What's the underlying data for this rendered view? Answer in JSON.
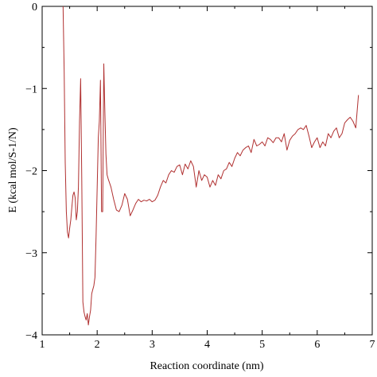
{
  "chart_data": {
    "type": "line",
    "xlabel": "Reaction coordinate (nm)",
    "ylabel": "E (kcal mol/S-1/N)",
    "xlim": [
      1,
      7
    ],
    "ylim": [
      -4,
      0
    ],
    "xticks": [
      1,
      2,
      3,
      4,
      5,
      6,
      7
    ],
    "yticks": [
      0,
      -1,
      -2,
      -3,
      -4
    ],
    "grid": false,
    "line_color": "#b03030",
    "series": [
      {
        "points": [
          [
            1.38,
            0.0
          ],
          [
            1.4,
            -0.8
          ],
          [
            1.42,
            -1.9
          ],
          [
            1.44,
            -2.5
          ],
          [
            1.46,
            -2.75
          ],
          [
            1.48,
            -2.82
          ],
          [
            1.5,
            -2.7
          ],
          [
            1.52,
            -2.6
          ],
          [
            1.54,
            -2.45
          ],
          [
            1.56,
            -2.3
          ],
          [
            1.58,
            -2.26
          ],
          [
            1.6,
            -2.33
          ],
          [
            1.62,
            -2.6
          ],
          [
            1.64,
            -2.5
          ],
          [
            1.66,
            -2.2
          ],
          [
            1.68,
            -1.4
          ],
          [
            1.7,
            -0.88
          ],
          [
            1.72,
            -2.1
          ],
          [
            1.74,
            -3.6
          ],
          [
            1.76,
            -3.72
          ],
          [
            1.78,
            -3.78
          ],
          [
            1.8,
            -3.82
          ],
          [
            1.82,
            -3.74
          ],
          [
            1.84,
            -3.88
          ],
          [
            1.86,
            -3.78
          ],
          [
            1.88,
            -3.7
          ],
          [
            1.9,
            -3.5
          ],
          [
            1.92,
            -3.45
          ],
          [
            1.94,
            -3.4
          ],
          [
            1.96,
            -3.3
          ],
          [
            1.98,
            -2.8
          ],
          [
            2.0,
            -2.2
          ],
          [
            2.02,
            -1.6
          ],
          [
            2.04,
            -1.4
          ],
          [
            2.06,
            -0.9
          ],
          [
            2.08,
            -2.5
          ],
          [
            2.1,
            -2.5
          ],
          [
            2.12,
            -0.7
          ],
          [
            2.14,
            -1.3
          ],
          [
            2.16,
            -1.8
          ],
          [
            2.18,
            -2.05
          ],
          [
            2.2,
            -2.1
          ],
          [
            2.25,
            -2.2
          ],
          [
            2.3,
            -2.35
          ],
          [
            2.35,
            -2.48
          ],
          [
            2.4,
            -2.5
          ],
          [
            2.45,
            -2.42
          ],
          [
            2.5,
            -2.28
          ],
          [
            2.55,
            -2.35
          ],
          [
            2.6,
            -2.55
          ],
          [
            2.65,
            -2.48
          ],
          [
            2.7,
            -2.4
          ],
          [
            2.75,
            -2.35
          ],
          [
            2.8,
            -2.38
          ],
          [
            2.85,
            -2.36
          ],
          [
            2.9,
            -2.37
          ],
          [
            2.95,
            -2.35
          ],
          [
            3.0,
            -2.38
          ],
          [
            3.05,
            -2.36
          ],
          [
            3.1,
            -2.3
          ],
          [
            3.15,
            -2.2
          ],
          [
            3.2,
            -2.12
          ],
          [
            3.25,
            -2.15
          ],
          [
            3.3,
            -2.05
          ],
          [
            3.35,
            -2.0
          ],
          [
            3.4,
            -2.02
          ],
          [
            3.45,
            -1.95
          ],
          [
            3.5,
            -1.93
          ],
          [
            3.55,
            -2.05
          ],
          [
            3.6,
            -1.92
          ],
          [
            3.65,
            -1.98
          ],
          [
            3.7,
            -1.88
          ],
          [
            3.75,
            -1.95
          ],
          [
            3.8,
            -2.2
          ],
          [
            3.85,
            -2.0
          ],
          [
            3.9,
            -2.12
          ],
          [
            3.95,
            -2.05
          ],
          [
            4.0,
            -2.08
          ],
          [
            4.05,
            -2.2
          ],
          [
            4.1,
            -2.12
          ],
          [
            4.15,
            -2.18
          ],
          [
            4.2,
            -2.05
          ],
          [
            4.25,
            -2.1
          ],
          [
            4.3,
            -2.0
          ],
          [
            4.35,
            -1.98
          ],
          [
            4.4,
            -1.9
          ],
          [
            4.45,
            -1.95
          ],
          [
            4.5,
            -1.85
          ],
          [
            4.55,
            -1.78
          ],
          [
            4.6,
            -1.82
          ],
          [
            4.65,
            -1.75
          ],
          [
            4.7,
            -1.72
          ],
          [
            4.75,
            -1.7
          ],
          [
            4.8,
            -1.78
          ],
          [
            4.85,
            -1.62
          ],
          [
            4.9,
            -1.7
          ],
          [
            4.95,
            -1.68
          ],
          [
            5.0,
            -1.65
          ],
          [
            5.05,
            -1.7
          ],
          [
            5.1,
            -1.6
          ],
          [
            5.15,
            -1.62
          ],
          [
            5.2,
            -1.66
          ],
          [
            5.25,
            -1.6
          ],
          [
            5.3,
            -1.6
          ],
          [
            5.35,
            -1.65
          ],
          [
            5.4,
            -1.55
          ],
          [
            5.45,
            -1.75
          ],
          [
            5.5,
            -1.63
          ],
          [
            5.55,
            -1.58
          ],
          [
            5.6,
            -1.55
          ],
          [
            5.65,
            -1.5
          ],
          [
            5.7,
            -1.48
          ],
          [
            5.75,
            -1.5
          ],
          [
            5.8,
            -1.45
          ],
          [
            5.85,
            -1.58
          ],
          [
            5.9,
            -1.72
          ],
          [
            5.95,
            -1.65
          ],
          [
            6.0,
            -1.6
          ],
          [
            6.05,
            -1.72
          ],
          [
            6.1,
            -1.65
          ],
          [
            6.15,
            -1.7
          ],
          [
            6.2,
            -1.55
          ],
          [
            6.25,
            -1.6
          ],
          [
            6.3,
            -1.52
          ],
          [
            6.35,
            -1.48
          ],
          [
            6.4,
            -1.6
          ],
          [
            6.45,
            -1.55
          ],
          [
            6.5,
            -1.42
          ],
          [
            6.55,
            -1.38
          ],
          [
            6.6,
            -1.35
          ],
          [
            6.65,
            -1.4
          ],
          [
            6.7,
            -1.48
          ],
          [
            6.75,
            -1.08
          ]
        ]
      }
    ]
  }
}
